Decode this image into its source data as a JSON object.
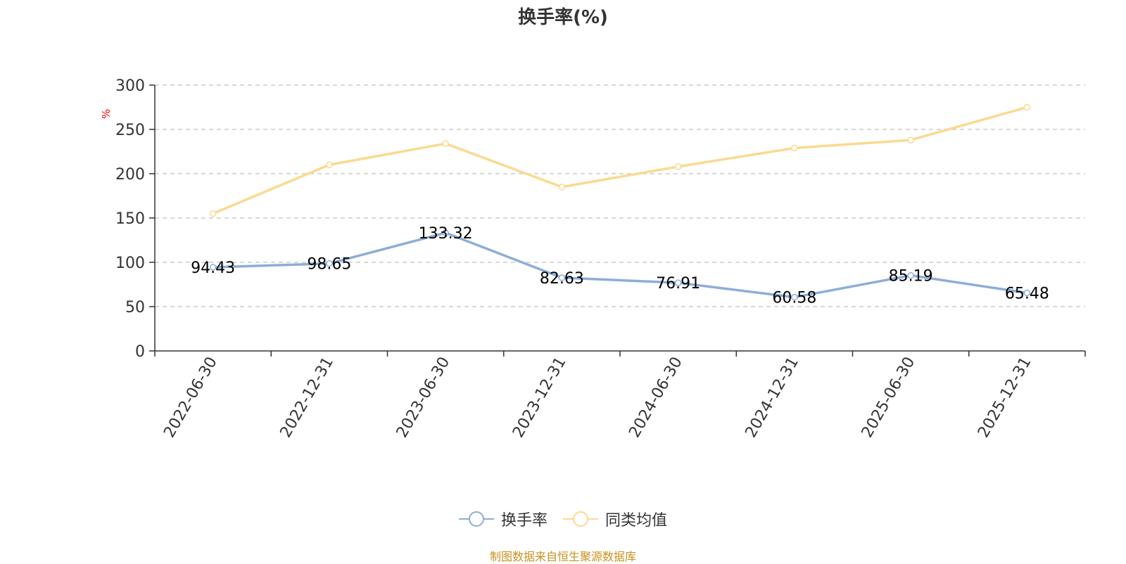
{
  "chart_data": {
    "type": "line",
    "title": "换手率(%)",
    "ylabel": "%",
    "categories": [
      "2022-06-30",
      "2022-12-31",
      "2023-06-30",
      "2023-12-31",
      "2024-06-30",
      "2024-12-31",
      "2025-06-30",
      "2025-12-31"
    ],
    "yticks": [
      0,
      50,
      100,
      150,
      200,
      250,
      300
    ],
    "ylim": [
      0,
      300
    ],
    "grid": true,
    "legend_position": "bottom",
    "series": [
      {
        "name": "换手率",
        "color": "#8eadd6",
        "values": [
          94.43,
          98.65,
          133.32,
          82.63,
          76.91,
          60.58,
          85.19,
          65.48
        ],
        "labels": [
          "94.43",
          "98.65",
          "133.32",
          "82.63",
          "76.91",
          "60.58",
          "85.19",
          "65.48"
        ]
      },
      {
        "name": "同类均值",
        "color": "#fbd98f",
        "values": [
          155,
          210,
          234,
          185,
          208,
          229,
          238,
          275
        ]
      }
    ]
  },
  "footer": {
    "source": "制图数据来自恒生聚源数据库"
  },
  "colors": {
    "axis": "#333333",
    "grid": "#cccccc",
    "unit": "#ff0000",
    "source": "#c8911e"
  }
}
